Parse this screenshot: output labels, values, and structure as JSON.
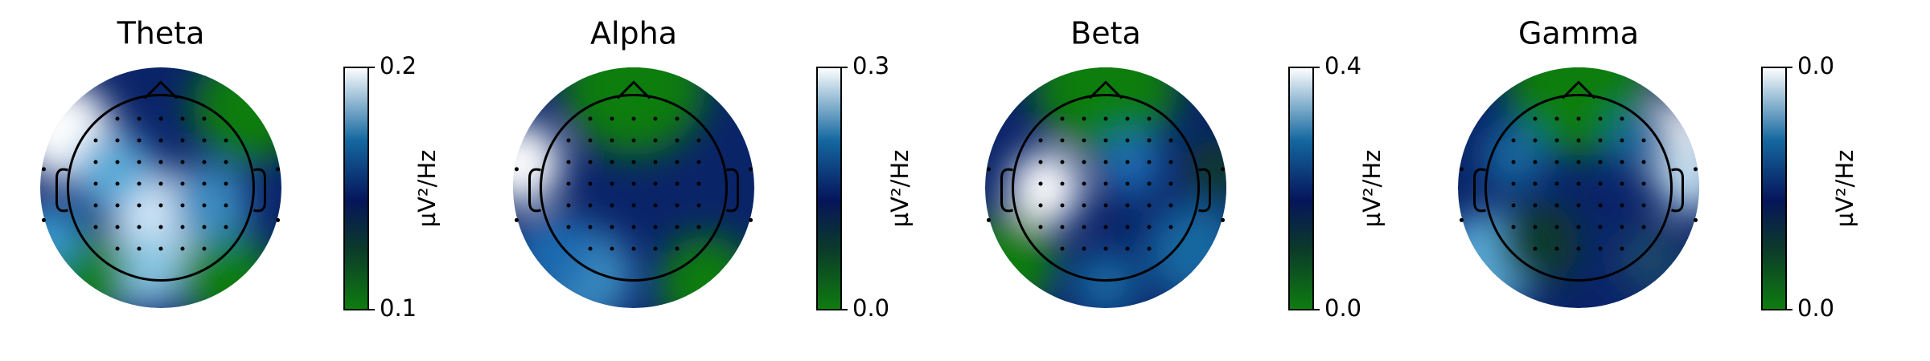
{
  "chart_data": [
    {
      "type": "topomap",
      "title": "Theta",
      "colorbar_label": "µV²/Hz",
      "clim": [
        0.1,
        0.2
      ],
      "cticks": [
        0.1,
        0.2
      ]
    },
    {
      "type": "topomap",
      "title": "Alpha",
      "colorbar_label": "µV²/Hz",
      "clim": [
        0,
        0.3
      ],
      "cticks": [
        {
          "value": 0,
          "label": "0.0"
        },
        0.3
      ]
    },
    {
      "type": "topomap",
      "title": "Beta",
      "colorbar_label": "µV²/Hz",
      "clim": [
        0,
        0.4
      ],
      "cticks": [
        {
          "value": 0,
          "label": "0.0"
        },
        0.4
      ]
    },
    {
      "type": "topomap",
      "title": "Gamma",
      "colorbar_label": "µV²/Hz",
      "clim": [
        0.01,
        0.04
      ],
      "cticks": [
        {
          "value": 0.01,
          "label": "0.0"
        },
        {
          "value": 0.04,
          "label": "0.0"
        }
      ]
    }
  ]
}
